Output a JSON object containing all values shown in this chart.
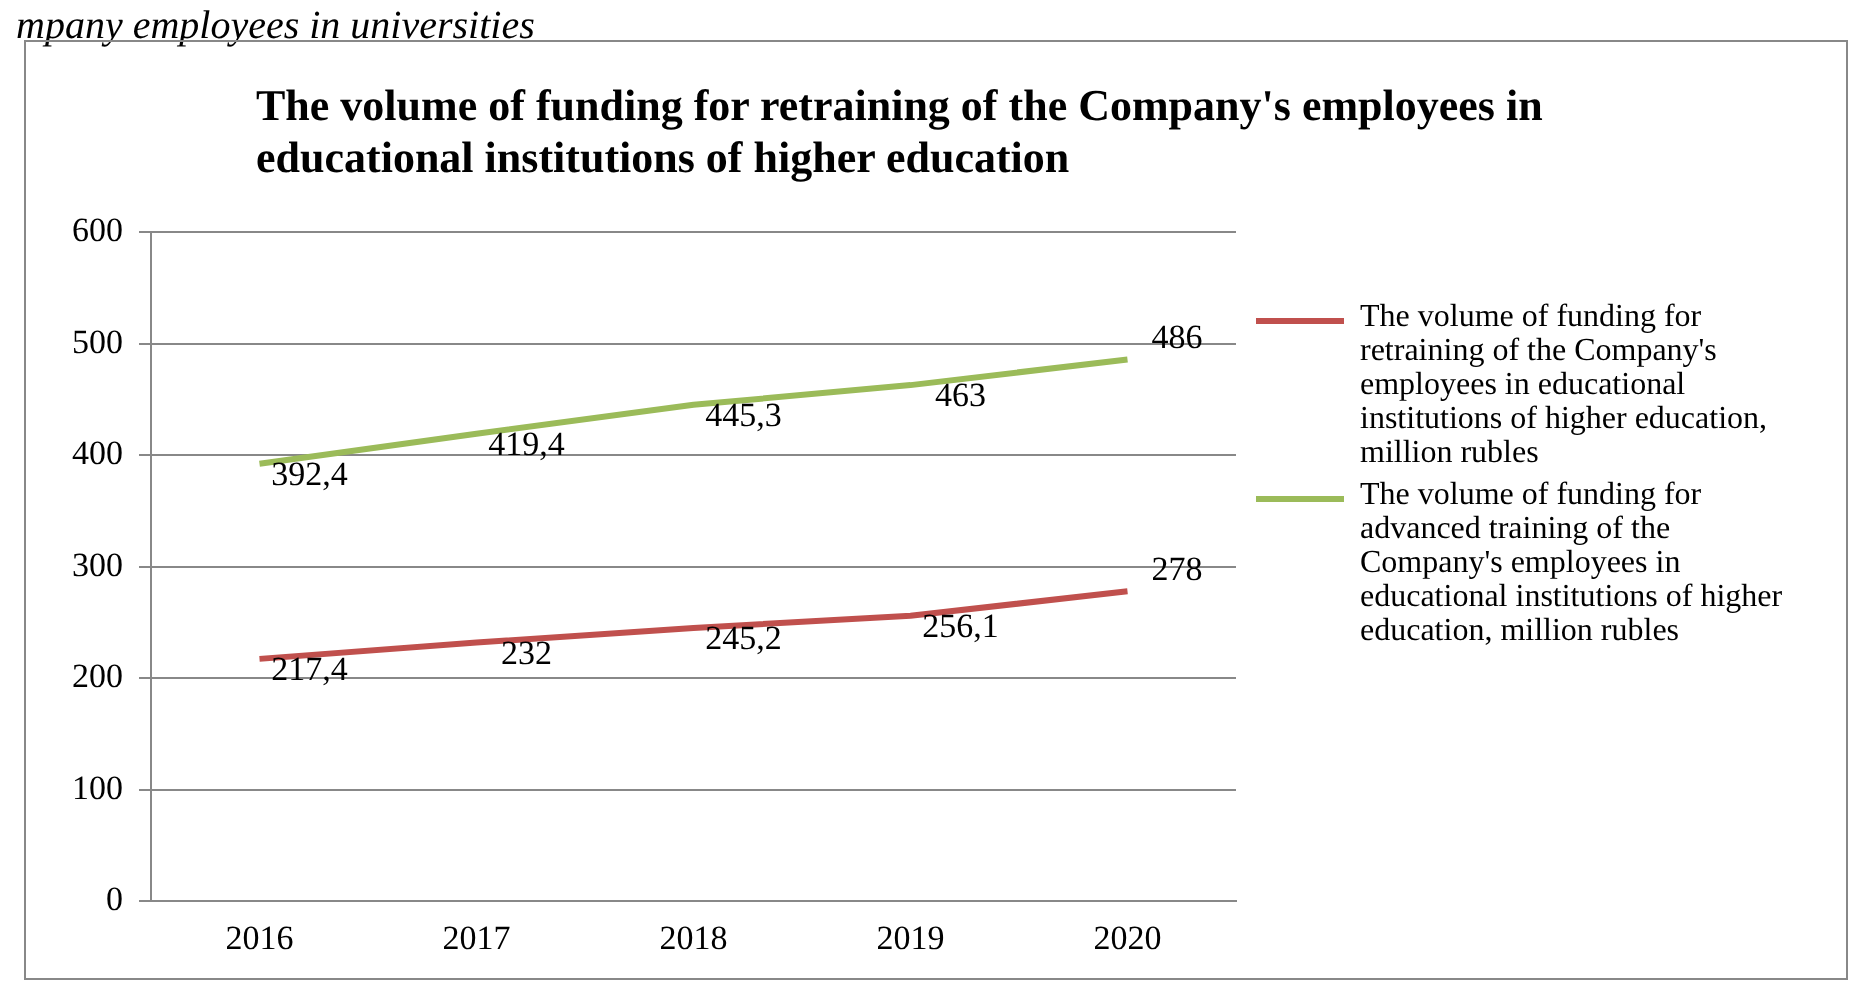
{
  "chart_data": {
    "type": "line",
    "title": "The volume of funding for retraining of the Company's employees in educational institutions of higher education",
    "annotations": [
      "mpany employees in universities"
    ],
    "categories": [
      "2016",
      "2017",
      "2018",
      "2019",
      "2020"
    ],
    "series": [
      {
        "name": "The volume of funding for retraining of the Company's employees in educational institutions of higher education, million rubles",
        "color": "#c0504d",
        "values": [
          217.4,
          232,
          245.2,
          256.1,
          278
        ],
        "value_labels": [
          "217,4",
          "232",
          "245,2",
          "256,1",
          "278"
        ]
      },
      {
        "name": "The volume of funding for advanced training of the Company's employees in educational institutions of higher education, million rubles",
        "color": "#9bbb59",
        "values": [
          392.4,
          419.4,
          445.3,
          463,
          486
        ],
        "value_labels": [
          "392,4",
          "419,4",
          "445,3",
          "463",
          "486"
        ]
      }
    ],
    "ylim": [
      0,
      600
    ],
    "yticks": [
      0,
      100,
      200,
      300,
      400,
      500,
      600
    ],
    "grid": "y",
    "legend": "right",
    "marker": "none",
    "line_style": "solid"
  }
}
